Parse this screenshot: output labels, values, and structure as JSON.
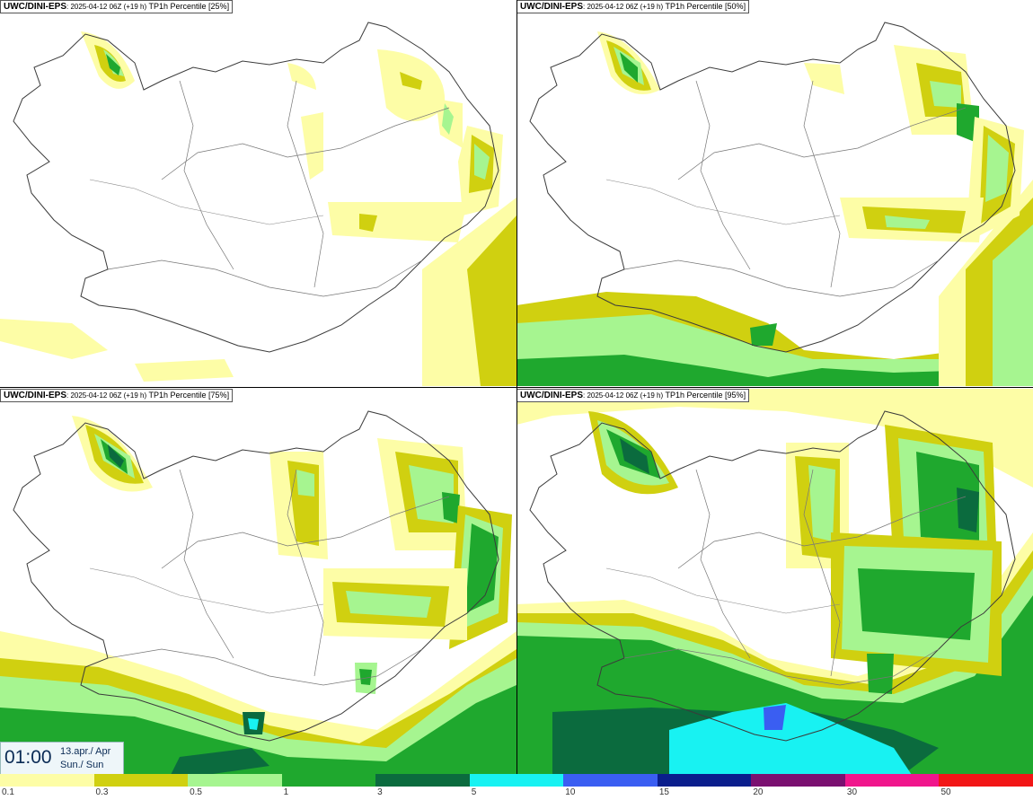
{
  "panels": [
    {
      "model": "UWC/DINI-EPS",
      "run": ": 2025-04-12 06Z (+19 h)",
      "field": "TP1h Percentile [25%]"
    },
    {
      "model": "UWC/DINI-EPS",
      "run": ": 2025-04-12 06Z (+19 h)",
      "field": "TP1h Percentile [50%]"
    },
    {
      "model": "UWC/DINI-EPS",
      "run": ": 2025-04-12 06Z (+19 h)",
      "field": "TP1h Percentile [75%]"
    },
    {
      "model": "UWC/DINI-EPS",
      "run": ": 2025-04-12 06Z (+19 h)",
      "field": "TP1h Percentile [95%]"
    }
  ],
  "valid_time": {
    "time": "01:00",
    "date": "13.apr./ Apr",
    "day": "Sun./ Sun"
  },
  "colorbar": {
    "ticks": [
      "0.1",
      "0.3",
      "0.5",
      "1",
      "3",
      "5",
      "10",
      "15",
      "20",
      "30",
      "50"
    ],
    "colors": [
      "#fdfda6",
      "#d0d010",
      "#a6f590",
      "#1fa82e",
      "#0b6b3e",
      "#18f2f2",
      "#3a5ef2",
      "#0a1e8c",
      "#7a1070",
      "#f0168c",
      "#f21616"
    ]
  }
}
